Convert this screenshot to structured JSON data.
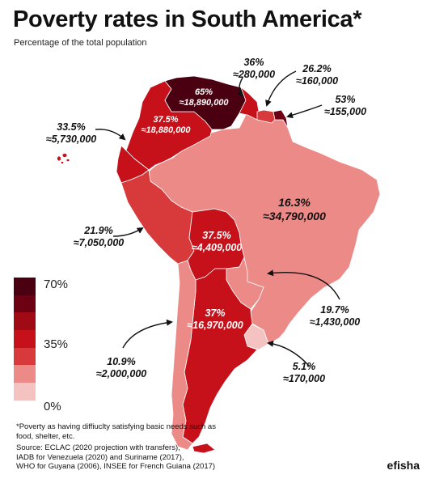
{
  "title": "Poverty rates in South America*",
  "subtitle": "Percentage of the total population",
  "colors": {
    "c70": "#4a0010",
    "c60": "#6e0013",
    "c50": "#a00a14",
    "c40": "#c6101a",
    "c30": "#d83a3c",
    "c20": "#ec8a87",
    "c10": "#f5c2c2",
    "ocean": "#ffffff"
  },
  "legend": {
    "ticks": [
      "70%",
      "35%",
      "0%"
    ],
    "steps": [
      "#4a0010",
      "#6e0013",
      "#a00a14",
      "#c6101a",
      "#d83a3c",
      "#ec8a87",
      "#f5c2c2"
    ]
  },
  "countries": {
    "venezuela": {
      "name": "Venezuela",
      "rate": "65%",
      "pop": "≈18,890,000",
      "percent": 65
    },
    "guyana": {
      "name": "Guyana",
      "rate": "36%",
      "pop": "≈280,000",
      "percent": 36
    },
    "suriname": {
      "name": "Suriname",
      "rate": "26.2%",
      "pop": "≈160,000",
      "percent": 26.2
    },
    "french_guiana": {
      "name": "French Guiana",
      "rate": "53%",
      "pop": "≈155,000",
      "percent": 53
    },
    "colombia": {
      "name": "Colombia",
      "rate": "37.5%",
      "pop": "≈18,880,000",
      "percent": 37.5
    },
    "ecuador": {
      "name": "Ecuador",
      "rate": "33.5%",
      "pop": "≈5,730,000",
      "percent": 33.5
    },
    "brazil": {
      "name": "Brazil",
      "rate": "16.3%",
      "pop": "≈34,790,000",
      "percent": 16.3
    },
    "peru": {
      "name": "Peru",
      "rate": "21.9%",
      "pop": "≈7,050,000",
      "percent": 21.9
    },
    "bolivia": {
      "name": "Bolivia",
      "rate": "37.5%",
      "pop": "≈4,409,000",
      "percent": 37.5
    },
    "paraguay": {
      "name": "Paraguay",
      "rate": "19.7%",
      "pop": "≈1,430,000",
      "percent": 19.7
    },
    "argentina": {
      "name": "Argentina",
      "rate": "37%",
      "pop": "≈16,970,000",
      "percent": 37
    },
    "chile": {
      "name": "Chile",
      "rate": "10.9%",
      "pop": "≈2,000,000",
      "percent": 10.9
    },
    "uruguay": {
      "name": "Uruguay",
      "rate": "5.1%",
      "pop": "≈170,000",
      "percent": 5.1
    }
  },
  "footnote": "*Poverty as having diffiuclty satisfying basic needs such as food, shelter, etc.",
  "source_lines": [
    "Source: ECLAC (2020 projection with transfers),",
    "IADB for Venezuela (2020) and Suriname (2017),",
    "WHO for Guyana (2006), INSEE for French Guiana (2017)"
  ],
  "brand": "efisha"
}
